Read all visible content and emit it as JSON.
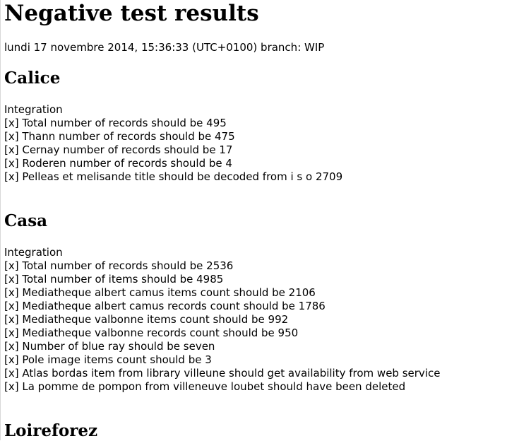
{
  "page_title": "Negative test results",
  "meta": "lundi 17 novembre 2014, 15:36:33 (UTC+0100) branch: WIP",
  "sections": [
    {
      "name": "Calice",
      "group": "Integration",
      "results": [
        "[x] Total number of records should be 495",
        "[x] Thann number of records should be 475",
        "[x] Cernay number of records should be 17",
        "[x] Roderen number of records should be 4",
        "[x] Pelleas et melisande title should be decoded from i s o 2709"
      ]
    },
    {
      "name": "Casa",
      "group": "Integration",
      "results": [
        "[x] Total number of records should be 2536",
        "[x] Total number of items should be 4985",
        "[x] Mediatheque albert camus items count should be 2106",
        "[x] Mediatheque albert camus records count should be 1786",
        "[x] Mediatheque valbonne items count should be 992",
        "[x] Mediatheque valbonne records count should be 950",
        "[x] Number of blue ray should be seven",
        "[x] Pole image items count should be 3",
        "[x] Atlas bordas item from library villeune should get availability from web service",
        "[x] La pomme de pompon from villeneuve loubet should have been deleted"
      ]
    },
    {
      "name": "Loireforez"
    }
  ]
}
